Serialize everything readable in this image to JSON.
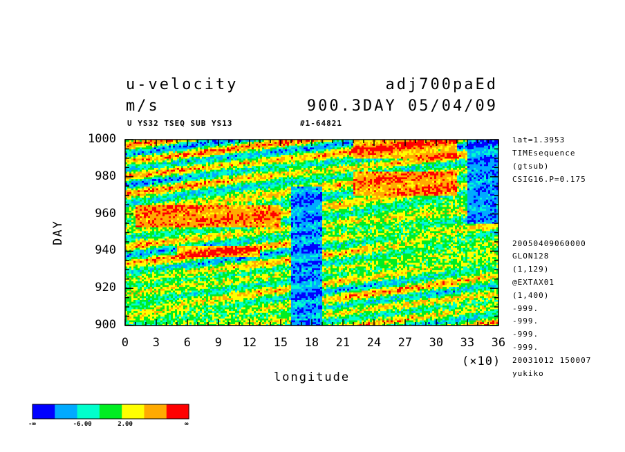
{
  "header": {
    "variable": "u-velocity",
    "units": "m/s",
    "run_name": "adj700paEd",
    "time_stamp": "900.3DAY 05/04/09",
    "subtitle_left": "U YS32 TSEQ SUB YS13",
    "subtitle_right": "#1-64821"
  },
  "side_info": [
    "lat=1.3953",
    "TIMEsequence",
    "(gtsub)",
    "CSIG16.P=0.175",
    "20050409060000",
    "GLON128",
    "(1,129)",
    "@EXTAX01",
    "(1,400)",
    "-999.",
    "-999.",
    "-999.",
    "-999.",
    "20031012 150007",
    "yukiko"
  ],
  "colorbar": {
    "colors": [
      "#0000ff",
      "#00aaff",
      "#00ffcc",
      "#00ee22",
      "#ffff00",
      "#ffaa00",
      "#ff0000"
    ],
    "labels": [
      "-∞",
      "-6.00",
      "2.00",
      "∞"
    ]
  },
  "chart_data": {
    "type": "heatmap",
    "title": "u-velocity",
    "xlabel": "longitude",
    "ylabel": "DAY",
    "x_multiplier_label": "(×10)",
    "xlim": [
      0,
      36
    ],
    "ylim": [
      900,
      1000
    ],
    "x_ticks": [
      0,
      3,
      6,
      9,
      12,
      15,
      18,
      21,
      24,
      27,
      30,
      33,
      36
    ],
    "y_ticks": [
      900,
      920,
      940,
      960,
      980,
      1000
    ],
    "color_levels": 7,
    "features": [
      {
        "level": 0,
        "desc": "negative band",
        "lon_start": 16,
        "lon_end": 19,
        "day_start": 900,
        "day_end": 975
      },
      {
        "level": 0,
        "desc": "negative band",
        "lon_start": 33,
        "lon_end": 36,
        "day_start": 955,
        "day_end": 1000
      },
      {
        "level": 6,
        "desc": "positive streak",
        "lon_start": 1,
        "lon_end": 15,
        "day_start": 953,
        "day_end": 965
      },
      {
        "level": 6,
        "desc": "positive streak",
        "lon_start": 5,
        "lon_end": 13,
        "day_start": 937,
        "day_end": 943
      },
      {
        "level": 6,
        "desc": "positive streak",
        "lon_start": 22,
        "lon_end": 32,
        "day_start": 990,
        "day_end": 1000
      },
      {
        "level": 6,
        "desc": "positive streak",
        "lon_start": 22,
        "lon_end": 32,
        "day_start": 970,
        "day_end": 983
      }
    ]
  }
}
